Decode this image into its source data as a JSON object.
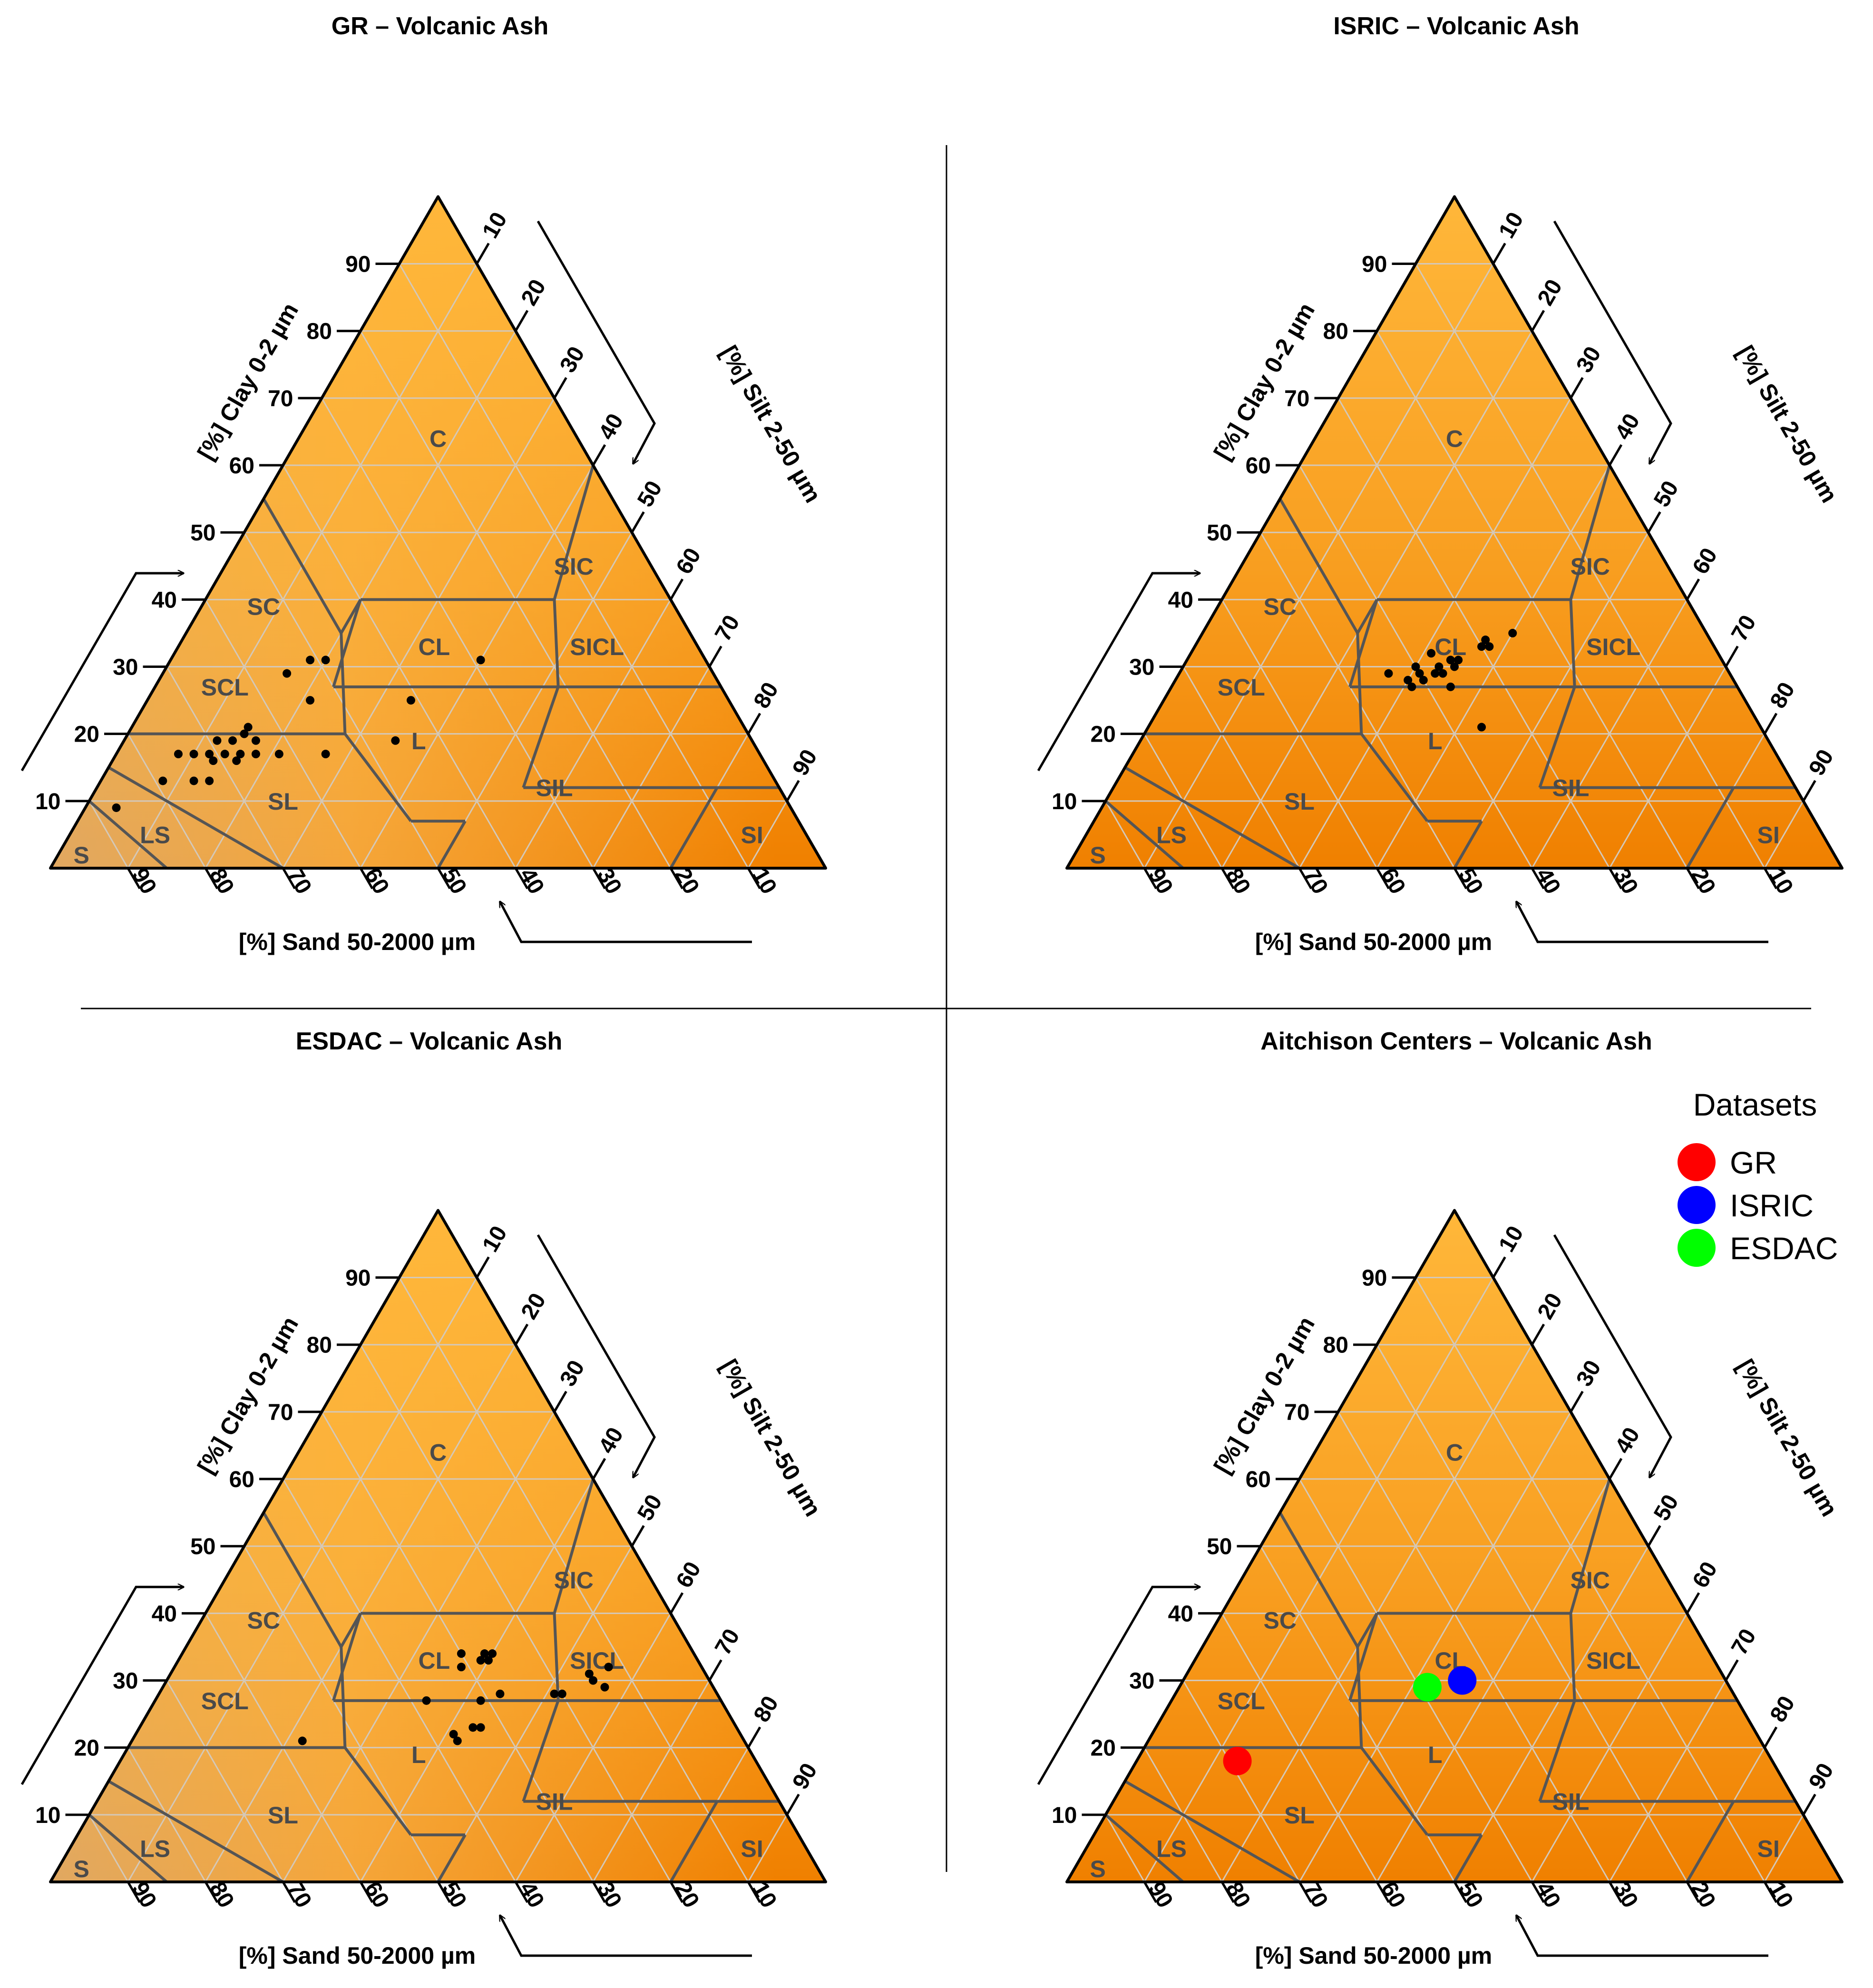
{
  "axis_labels": {
    "clay": "[%] Clay 0-2 µm",
    "silt": "[%] Silt 2-50 µm",
    "sand": "[%] Sand 50-2000 µm"
  },
  "ticks": [
    "10",
    "20",
    "30",
    "40",
    "50",
    "60",
    "70",
    "80",
    "90"
  ],
  "classes": [
    "C",
    "SIC",
    "SC",
    "CL",
    "SICL",
    "SCL",
    "L",
    "SIL",
    "SL",
    "LS",
    "S",
    "SI"
  ],
  "legend": {
    "title": "Datasets",
    "items": [
      {
        "label": "GR",
        "color": "#ff0000"
      },
      {
        "label": "ISRIC",
        "color": "#0000ff"
      },
      {
        "label": "ESDAC",
        "color": "#00ff00"
      }
    ]
  },
  "colors": {
    "fill_top": "#ffb73a",
    "fill_sand_corner": "#dda868",
    "fill_silt_corner": "#f08000",
    "grid": "#d4c8b8",
    "boundary": "#555555",
    "class_label": "#4a4a4a",
    "point": "#000000"
  },
  "chart_data": [
    {
      "type": "scatter",
      "chart_kind": "ternary",
      "title": "GR – Volcanic Ash",
      "axes": [
        "clay",
        "silt",
        "sand"
      ],
      "points": [
        {
          "clay": 29,
          "silt": 16,
          "sand": 55
        },
        {
          "clay": 31,
          "silt": 20,
          "sand": 49
        },
        {
          "clay": 31,
          "silt": 18,
          "sand": 51
        },
        {
          "clay": 25,
          "silt": 21,
          "sand": 54
        },
        {
          "clay": 31,
          "silt": 40,
          "sand": 29
        },
        {
          "clay": 25,
          "silt": 34,
          "sand": 41
        },
        {
          "clay": 21,
          "silt": 15,
          "sand": 64
        },
        {
          "clay": 20,
          "silt": 15,
          "sand": 65
        },
        {
          "clay": 19,
          "silt": 14,
          "sand": 67
        },
        {
          "clay": 19,
          "silt": 12,
          "sand": 69
        },
        {
          "clay": 19,
          "silt": 17,
          "sand": 64
        },
        {
          "clay": 19,
          "silt": 35,
          "sand": 46
        },
        {
          "clay": 17,
          "silt": 8,
          "sand": 75
        },
        {
          "clay": 17,
          "silt": 10,
          "sand": 73
        },
        {
          "clay": 17,
          "silt": 12,
          "sand": 71
        },
        {
          "clay": 17,
          "silt": 14,
          "sand": 69
        },
        {
          "clay": 17,
          "silt": 16,
          "sand": 67
        },
        {
          "clay": 17,
          "silt": 18,
          "sand": 65
        },
        {
          "clay": 17,
          "silt": 21,
          "sand": 62
        },
        {
          "clay": 17,
          "silt": 27,
          "sand": 56
        },
        {
          "clay": 16,
          "silt": 13,
          "sand": 71
        },
        {
          "clay": 16,
          "silt": 16,
          "sand": 68
        },
        {
          "clay": 13,
          "silt": 8,
          "sand": 79
        },
        {
          "clay": 13,
          "silt": 12,
          "sand": 75
        },
        {
          "clay": 13,
          "silt": 14,
          "sand": 73
        },
        {
          "clay": 9,
          "silt": 4,
          "sand": 87
        }
      ]
    },
    {
      "type": "scatter",
      "chart_kind": "ternary",
      "title": "ISRIC – Volcanic Ash",
      "axes": [
        "clay",
        "silt",
        "sand"
      ],
      "points": [
        {
          "clay": 35,
          "silt": 40,
          "sand": 25
        },
        {
          "clay": 34,
          "silt": 37,
          "sand": 29
        },
        {
          "clay": 33,
          "silt": 37,
          "sand": 30
        },
        {
          "clay": 33,
          "silt": 38,
          "sand": 29
        },
        {
          "clay": 32,
          "silt": 31,
          "sand": 37
        },
        {
          "clay": 31,
          "silt": 34,
          "sand": 35
        },
        {
          "clay": 31,
          "silt": 35,
          "sand": 34
        },
        {
          "clay": 30,
          "silt": 30,
          "sand": 40
        },
        {
          "clay": 30,
          "silt": 33,
          "sand": 37
        },
        {
          "clay": 30,
          "silt": 35,
          "sand": 35
        },
        {
          "clay": 29,
          "silt": 27,
          "sand": 44
        },
        {
          "clay": 29,
          "silt": 31,
          "sand": 40
        },
        {
          "clay": 29,
          "silt": 33,
          "sand": 38
        },
        {
          "clay": 29,
          "silt": 34,
          "sand": 37
        },
        {
          "clay": 28,
          "silt": 30,
          "sand": 42
        },
        {
          "clay": 28,
          "silt": 32,
          "sand": 40
        },
        {
          "clay": 27,
          "silt": 31,
          "sand": 42
        },
        {
          "clay": 27,
          "silt": 36,
          "sand": 37
        },
        {
          "clay": 21,
          "silt": 43,
          "sand": 36
        }
      ]
    },
    {
      "type": "scatter",
      "chart_kind": "ternary",
      "title": "ESDAC – Volcanic Ash",
      "axes": [
        "clay",
        "silt",
        "sand"
      ],
      "points": [
        {
          "clay": 34,
          "silt": 36,
          "sand": 30
        },
        {
          "clay": 34,
          "silt": 39,
          "sand": 27
        },
        {
          "clay": 34,
          "silt": 40,
          "sand": 26
        },
        {
          "clay": 33,
          "silt": 39,
          "sand": 28
        },
        {
          "clay": 33,
          "silt": 40,
          "sand": 27
        },
        {
          "clay": 32,
          "silt": 37,
          "sand": 31
        },
        {
          "clay": 32,
          "silt": 56,
          "sand": 12
        },
        {
          "clay": 31,
          "silt": 54,
          "sand": 15
        },
        {
          "clay": 30,
          "silt": 55,
          "sand": 15
        },
        {
          "clay": 29,
          "silt": 57,
          "sand": 14
        },
        {
          "clay": 28,
          "silt": 51,
          "sand": 21
        },
        {
          "clay": 28,
          "silt": 52,
          "sand": 20
        },
        {
          "clay": 28,
          "silt": 44,
          "sand": 28
        },
        {
          "clay": 27,
          "silt": 42,
          "sand": 31
        },
        {
          "clay": 27,
          "silt": 35,
          "sand": 38
        },
        {
          "clay": 23,
          "silt": 43,
          "sand": 34
        },
        {
          "clay": 23,
          "silt": 44,
          "sand": 33
        },
        {
          "clay": 22,
          "silt": 41,
          "sand": 37
        },
        {
          "clay": 21,
          "silt": 42,
          "sand": 37
        },
        {
          "clay": 21,
          "silt": 22,
          "sand": 57
        }
      ]
    },
    {
      "type": "scatter",
      "chart_kind": "ternary",
      "title": "Aitchison Centers – Volcanic Ash",
      "axes": [
        "clay",
        "silt",
        "sand"
      ],
      "points": [
        {
          "series": "GR",
          "clay": 18,
          "silt": 13,
          "sand": 69
        },
        {
          "series": "ISRIC",
          "clay": 30,
          "silt": 36,
          "sand": 34
        },
        {
          "series": "ESDAC",
          "clay": 29,
          "silt": 32,
          "sand": 39
        }
      ]
    }
  ]
}
